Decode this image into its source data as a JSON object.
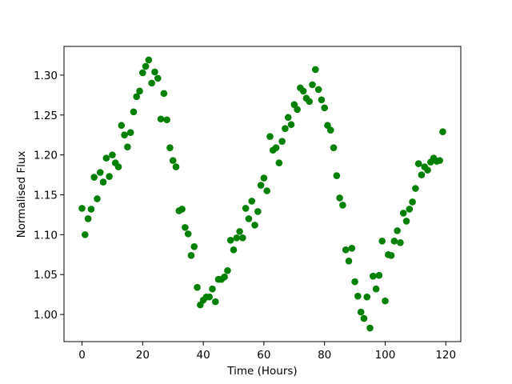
{
  "chart_data": {
    "type": "scatter",
    "x_label": "Time (Hours)",
    "y_label": "Normalised Flux",
    "color": "#008000",
    "x": [
      0,
      1,
      2,
      3,
      4,
      5,
      6,
      7,
      8,
      9,
      10,
      11,
      12,
      13,
      14,
      15,
      16,
      17,
      18,
      19,
      20,
      21,
      22,
      23,
      24,
      25,
      26,
      27,
      28,
      29,
      30,
      31,
      32,
      33,
      34,
      35,
      36,
      37,
      38,
      39,
      40,
      41,
      42,
      43,
      44,
      45,
      46,
      47,
      48,
      49,
      50,
      51,
      52,
      53,
      54,
      55,
      56,
      57,
      58,
      59,
      60,
      61,
      62,
      63,
      64,
      65,
      66,
      67,
      68,
      69,
      70,
      71,
      72,
      73,
      74,
      75,
      76,
      77,
      78,
      79,
      80,
      81,
      82,
      83,
      84,
      85,
      86,
      87,
      88,
      89,
      90,
      91,
      92,
      93,
      94,
      95,
      96,
      97,
      98,
      99,
      100,
      101,
      102,
      103,
      104,
      105,
      106,
      107,
      108,
      109,
      110,
      111,
      112,
      113,
      114,
      115,
      116,
      117,
      118,
      119
    ],
    "values": [
      1.133,
      1.1,
      1.12,
      1.132,
      1.172,
      1.145,
      1.178,
      1.166,
      1.196,
      1.173,
      1.2,
      1.19,
      1.185,
      1.237,
      1.225,
      1.21,
      1.228,
      1.254,
      1.273,
      1.28,
      1.303,
      1.311,
      1.319,
      1.29,
      1.304,
      1.296,
      1.245,
      1.277,
      1.244,
      1.209,
      1.193,
      1.185,
      1.13,
      1.132,
      1.109,
      1.101,
      1.074,
      1.085,
      1.034,
      1.012,
      1.018,
      1.022,
      1.022,
      1.032,
      1.016,
      1.044,
      1.044,
      1.047,
      1.055,
      1.093,
      1.081,
      1.096,
      1.104,
      1.096,
      1.133,
      1.12,
      1.142,
      1.112,
      1.129,
      1.162,
      1.171,
      1.155,
      1.223,
      1.206,
      1.209,
      1.19,
      1.217,
      1.233,
      1.247,
      1.238,
      1.263,
      1.257,
      1.284,
      1.28,
      1.271,
      1.267,
      1.288,
      1.307,
      1.282,
      1.269,
      1.259,
      1.237,
      1.231,
      1.209,
      1.174,
      1.146,
      1.137,
      1.081,
      1.067,
      1.083,
      1.041,
      1.023,
      1.003,
      0.995,
      1.022,
      0.983,
      1.048,
      1.032,
      1.049,
      1.092,
      1.017,
      1.075,
      1.074,
      1.092,
      1.105,
      1.09,
      1.127,
      1.117,
      1.132,
      1.141,
      1.158,
      1.189,
      1.175,
      1.185,
      1.181,
      1.191,
      1.196,
      1.192,
      1.193,
      1.229
    ],
    "xlim": [
      -5.95,
      124.95
    ],
    "ylim": [
      0.966,
      1.336
    ],
    "xticks": [
      0,
      20,
      40,
      60,
      80,
      100,
      120
    ],
    "yticks": [
      {
        "value": 1.0,
        "label": "1.00"
      },
      {
        "value": 1.05,
        "label": "1.05"
      },
      {
        "value": 1.1,
        "label": "1.10"
      },
      {
        "value": 1.15,
        "label": "1.15"
      },
      {
        "value": 1.2,
        "label": "1.20"
      },
      {
        "value": 1.25,
        "label": "1.25"
      },
      {
        "value": 1.3,
        "label": "1.30"
      }
    ]
  }
}
